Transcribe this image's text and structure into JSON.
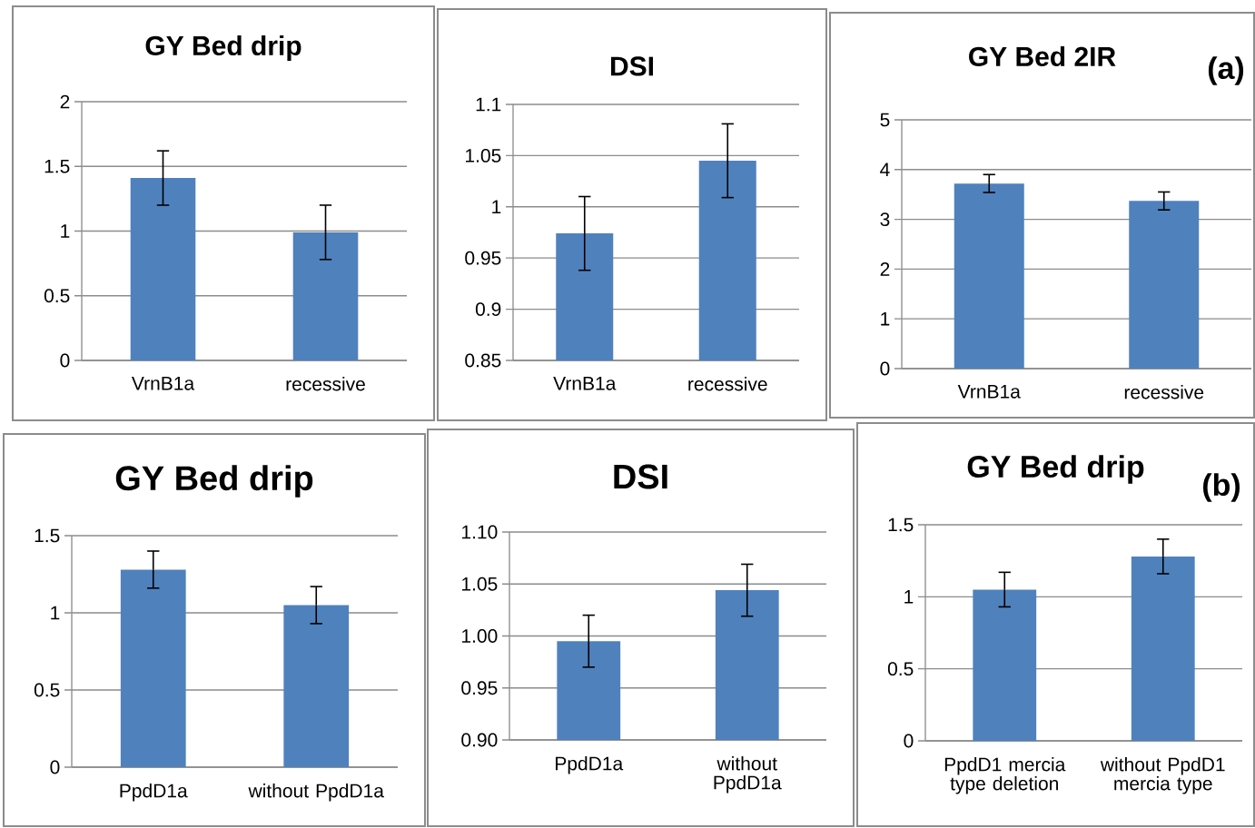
{
  "chart_data": [
    {
      "type": "bar",
      "title": "GY Bed drip",
      "categories": [
        "VrnB1a",
        "recessive"
      ],
      "values": [
        1.41,
        0.99
      ],
      "errors": [
        0.21,
        0.21
      ],
      "color": "#4f81bd",
      "ylim": [
        0,
        2
      ],
      "yticks": [
        0,
        0.5,
        1,
        1.5,
        2
      ],
      "grid": "y"
    },
    {
      "type": "bar",
      "title": "DSI",
      "categories": [
        "VrnB1a",
        "recessive"
      ],
      "values": [
        0.974,
        1.045
      ],
      "errors": [
        0.036,
        0.036
      ],
      "color": "#4f81bd",
      "ylim": [
        0.85,
        1.1
      ],
      "yticks": [
        0.85,
        0.9,
        0.95,
        1,
        1.05,
        1.1
      ],
      "grid": "y"
    },
    {
      "type": "bar",
      "title": "GY Bed 2IR",
      "categories": [
        "VrnB1a",
        "recessive"
      ],
      "values": [
        3.72,
        3.37
      ],
      "errors": [
        0.18,
        0.18
      ],
      "color": "#4f81bd",
      "ylim": [
        0,
        5
      ],
      "yticks": [
        0,
        1,
        2,
        3,
        4,
        5
      ],
      "grid": "y",
      "annotations": [
        "(a)"
      ]
    },
    {
      "type": "bar",
      "title": "GY Bed drip",
      "categories": [
        "PpdD1a",
        "without PpdD1a"
      ],
      "values": [
        1.28,
        1.05
      ],
      "errors": [
        0.12,
        0.12
      ],
      "color": "#4f81bd",
      "ylim": [
        0,
        1.5
      ],
      "yticks": [
        0,
        0.5,
        1,
        1.5
      ],
      "grid": "y"
    },
    {
      "type": "bar",
      "title": "DSI",
      "categories": [
        "PpdD1a",
        "without PpdD1a"
      ],
      "values": [
        0.995,
        1.044
      ],
      "errors": [
        0.025,
        0.025
      ],
      "color": "#4f81bd",
      "ylim": [
        0.9,
        1.1
      ],
      "yticks": [
        {
          "value": 0.9,
          "label": "0.90"
        },
        0.95,
        {
          "value": 1,
          "label": "1.00"
        },
        1.05,
        {
          "value": 1.1,
          "label": "1.10"
        }
      ],
      "grid": "y"
    },
    {
      "type": "bar",
      "title": "GY Bed drip",
      "categories": [
        "PpdD1 mercia type deletion",
        "without PpdD1 mercia type"
      ],
      "values": [
        1.05,
        1.28
      ],
      "errors": [
        0.12,
        0.12
      ],
      "color": "#4f81bd",
      "ylim": [
        0,
        1.5
      ],
      "yticks": [
        0,
        0.5,
        1,
        1.5
      ],
      "grid": "y",
      "annotations": [
        "(b)"
      ]
    }
  ]
}
